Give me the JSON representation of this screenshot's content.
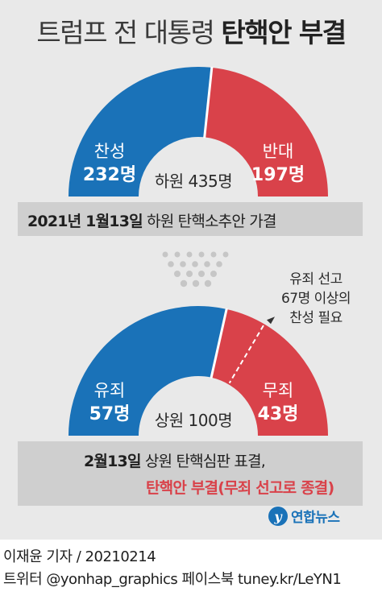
{
  "title": {
    "normal": "트럼프 전 대통령 ",
    "strong": "탄핵안 부결"
  },
  "chart_data": [
    {
      "type": "pie",
      "chamber_label": "하원 435명",
      "categories": [
        "찬성",
        "반대"
      ],
      "labels": [
        "232명",
        "197명"
      ],
      "values": [
        232,
        197
      ],
      "total": 435,
      "colors": [
        "#1a72b8",
        "#d9424a"
      ]
    },
    {
      "type": "pie",
      "chamber_label": "상원 100명",
      "categories": [
        "유죄",
        "무죄"
      ],
      "labels": [
        "57명",
        "43명"
      ],
      "values": [
        57,
        43
      ],
      "total": 100,
      "threshold": 67,
      "threshold_note": [
        "유죄 선고",
        "67명 이상의",
        "찬성 필요"
      ],
      "colors": [
        "#1a72b8",
        "#d9424a"
      ]
    }
  ],
  "house_band": {
    "date": "2021년 1월13일",
    "text": "하원 탄핵소추안 가결"
  },
  "senate_band": {
    "date": "2월13일",
    "text": "상원 탄핵심판 표결,",
    "result": "탄핵안 부결(무죄 선고로 종결)"
  },
  "logo": {
    "text": "연합뉴스"
  },
  "credit": {
    "reporter": "이재윤 기자",
    "date": "20210214",
    "social": "트위터 @yonhap_graphics  페이스북 tuney.kr/LeYN1"
  },
  "colors": {
    "guilty": "#1a72b8",
    "acquit": "#d9424a",
    "band": "#cfcfcf",
    "background": "#e9e9e9"
  }
}
